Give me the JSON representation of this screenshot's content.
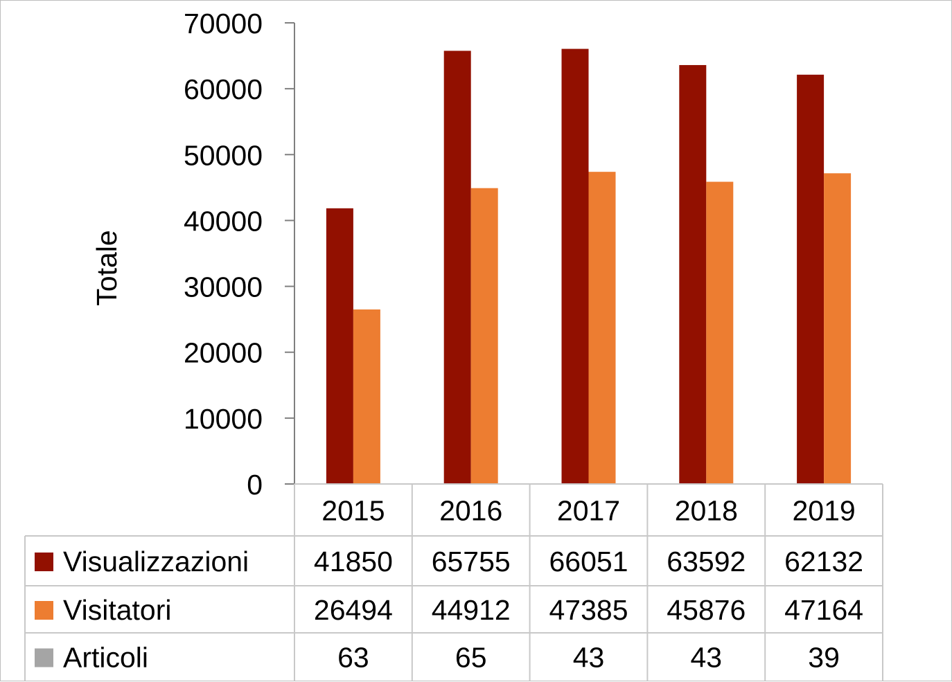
{
  "chart_data": {
    "type": "bar",
    "categories": [
      "2015",
      "2016",
      "2017",
      "2018",
      "2019"
    ],
    "series": [
      {
        "name": "Visualizzazioni",
        "color": "#921000",
        "values": [
          41850,
          65755,
          66051,
          63592,
          62132
        ],
        "plotted": true
      },
      {
        "name": "Visitatori",
        "color": "#ED7D31",
        "values": [
          26494,
          44912,
          47385,
          45876,
          47164
        ],
        "plotted": true
      },
      {
        "name": "Articoli",
        "color": "#A5A5A5",
        "values": [
          63,
          65,
          43,
          43,
          39
        ],
        "plotted": false
      }
    ],
    "ylabel": "Totale",
    "ylim": [
      0,
      70000
    ],
    "yticks": [
      0,
      10000,
      20000,
      30000,
      40000,
      50000,
      60000,
      70000
    ],
    "data_table": true,
    "grid": false
  }
}
